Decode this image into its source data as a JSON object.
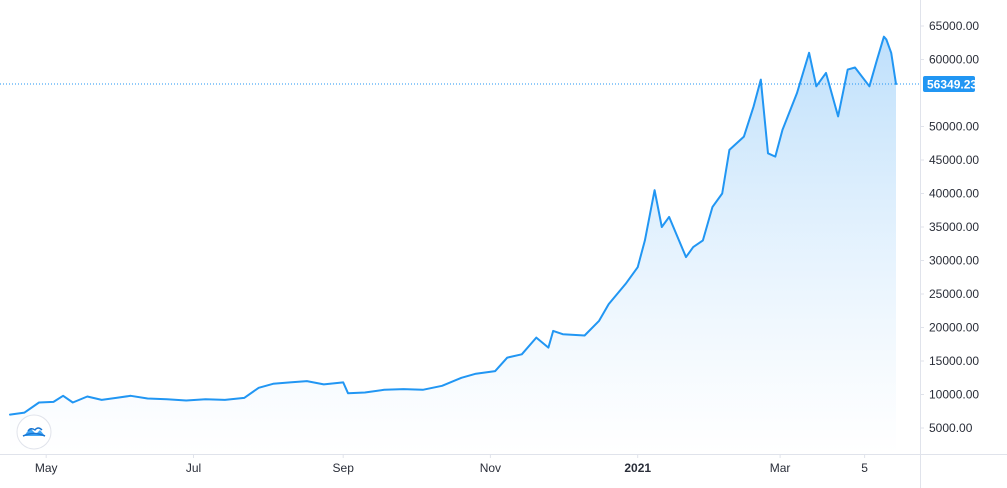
{
  "chart_data": {
    "type": "area",
    "title": "",
    "xlabel": "",
    "ylabel": "",
    "ylim": [
      2000,
      67000
    ],
    "y_ticks": [
      "5000.00",
      "10000.00",
      "15000.00",
      "20000.00",
      "25000.00",
      "30000.00",
      "35000.00",
      "40000.00",
      "45000.00",
      "50000.00",
      "55000.00",
      "60000.00",
      "65000.00"
    ],
    "x_tick_labels": [
      {
        "label": "May",
        "date": "2020-05-01",
        "bold": false
      },
      {
        "label": "Jul",
        "date": "2020-07-01",
        "bold": false
      },
      {
        "label": "Sep",
        "date": "2020-09-01",
        "bold": false
      },
      {
        "label": "Nov",
        "date": "2020-11-01",
        "bold": false
      },
      {
        "label": "2021",
        "date": "2021-01-01",
        "bold": true
      },
      {
        "label": "Mar",
        "date": "2021-03-01",
        "bold": false
      },
      {
        "label": "5",
        "date": "2021-04-05",
        "bold": false
      }
    ],
    "xlim": [
      "2020-04-16",
      "2021-04-26"
    ],
    "last_price": {
      "label": "56349.23",
      "value": 56349.23
    },
    "line_color": "#2196f3",
    "area_color_top": "#bbdefb",
    "area_color_bottom": "#ffffff",
    "price_label_color": "#2196f3",
    "grid": false,
    "series": [
      {
        "x": [
          "2020-04-16",
          "2020-04-22",
          "2020-04-28",
          "2020-05-04",
          "2020-05-08",
          "2020-05-12",
          "2020-05-18",
          "2020-05-24",
          "2020-05-30",
          "2020-06-05",
          "2020-06-12",
          "2020-06-20",
          "2020-06-28",
          "2020-07-06",
          "2020-07-14",
          "2020-07-22",
          "2020-07-28",
          "2020-08-03",
          "2020-08-10",
          "2020-08-17",
          "2020-08-24",
          "2020-09-01",
          "2020-09-03",
          "2020-09-10",
          "2020-09-18",
          "2020-09-26",
          "2020-10-04",
          "2020-10-12",
          "2020-10-20",
          "2020-10-26",
          "2020-11-03",
          "2020-11-08",
          "2020-11-14",
          "2020-11-20",
          "2020-11-25",
          "2020-11-27",
          "2020-12-01",
          "2020-12-10",
          "2020-12-16",
          "2020-12-20",
          "2020-12-27",
          "2021-01-01",
          "2021-01-04",
          "2021-01-08",
          "2021-01-11",
          "2021-01-14",
          "2021-01-21",
          "2021-01-24",
          "2021-01-28",
          "2021-02-01",
          "2021-02-05",
          "2021-02-08",
          "2021-02-14",
          "2021-02-18",
          "2021-02-21",
          "2021-02-24",
          "2021-02-27",
          "2021-03-02",
          "2021-03-08",
          "2021-03-13",
          "2021-03-16",
          "2021-03-20",
          "2021-03-25",
          "2021-03-29",
          "2021-04-01",
          "2021-04-07",
          "2021-04-10",
          "2021-04-13",
          "2021-04-14",
          "2021-04-16",
          "2021-04-18"
        ],
        "y": [
          7000,
          7300,
          8800,
          8900,
          9800,
          8800,
          9700,
          9200,
          9500,
          9800,
          9400,
          9300,
          9100,
          9300,
          9200,
          9500,
          11000,
          11600,
          11800,
          12000,
          11500,
          11800,
          10200,
          10300,
          10700,
          10800,
          10700,
          11300,
          12500,
          13100,
          13500,
          15500,
          16000,
          18500,
          17000,
          19500,
          19000,
          18800,
          21000,
          23500,
          26500,
          29000,
          33000,
          40500,
          35000,
          36500,
          30500,
          32000,
          33000,
          38000,
          40000,
          46500,
          48500,
          53000,
          57000,
          46000,
          45500,
          49500,
          55000,
          61000,
          56000,
          58000,
          51500,
          58500,
          58800,
          56000,
          59800,
          63400,
          63000,
          61000,
          56349.23
        ]
      }
    ]
  }
}
